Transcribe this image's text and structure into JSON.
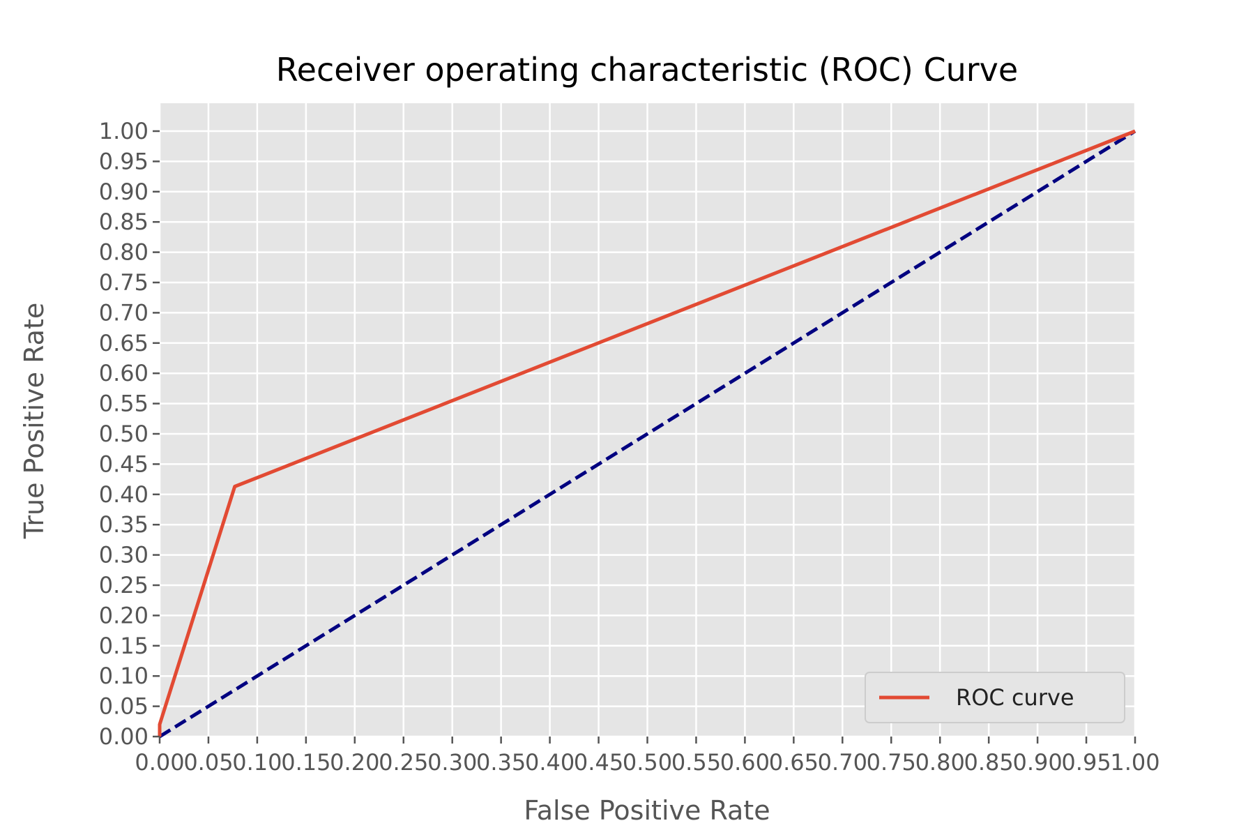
{
  "chart_data": {
    "type": "line",
    "title": "Receiver operating characteristic (ROC) Curve",
    "xlabel": "False Positive Rate",
    "ylabel": "True Positive Rate",
    "xlim": [
      0,
      1
    ],
    "ylim": [
      0,
      1
    ],
    "x_ticks": [
      "0.00",
      "0.05",
      "0.10",
      "0.15",
      "0.20",
      "0.25",
      "0.30",
      "0.35",
      "0.40",
      "0.45",
      "0.50",
      "0.55",
      "0.60",
      "0.65",
      "0.70",
      "0.75",
      "0.80",
      "0.85",
      "0.90",
      "0.95",
      "1.00"
    ],
    "y_ticks": [
      "0.00",
      "0.05",
      "0.10",
      "0.15",
      "0.20",
      "0.25",
      "0.30",
      "0.35",
      "0.40",
      "0.45",
      "0.50",
      "0.55",
      "0.60",
      "0.65",
      "0.70",
      "0.75",
      "0.80",
      "0.85",
      "0.90",
      "0.95",
      "1.00"
    ],
    "grid": true,
    "legend_position": "lower-right",
    "series": [
      {
        "name": "ROC curve",
        "color": "#E24A33",
        "style": "solid",
        "x": [
          0.0,
          0.0,
          0.077,
          1.0
        ],
        "y": [
          0.0,
          0.02,
          0.413,
          1.0
        ]
      },
      {
        "color": "#000080",
        "style": "dashed",
        "x": [
          0.0,
          1.0
        ],
        "y": [
          0.0,
          1.0
        ]
      }
    ],
    "colors": {
      "plot_background": "#E5E5E5",
      "grid": "#FFFFFF",
      "tick_text": "#555555"
    }
  }
}
